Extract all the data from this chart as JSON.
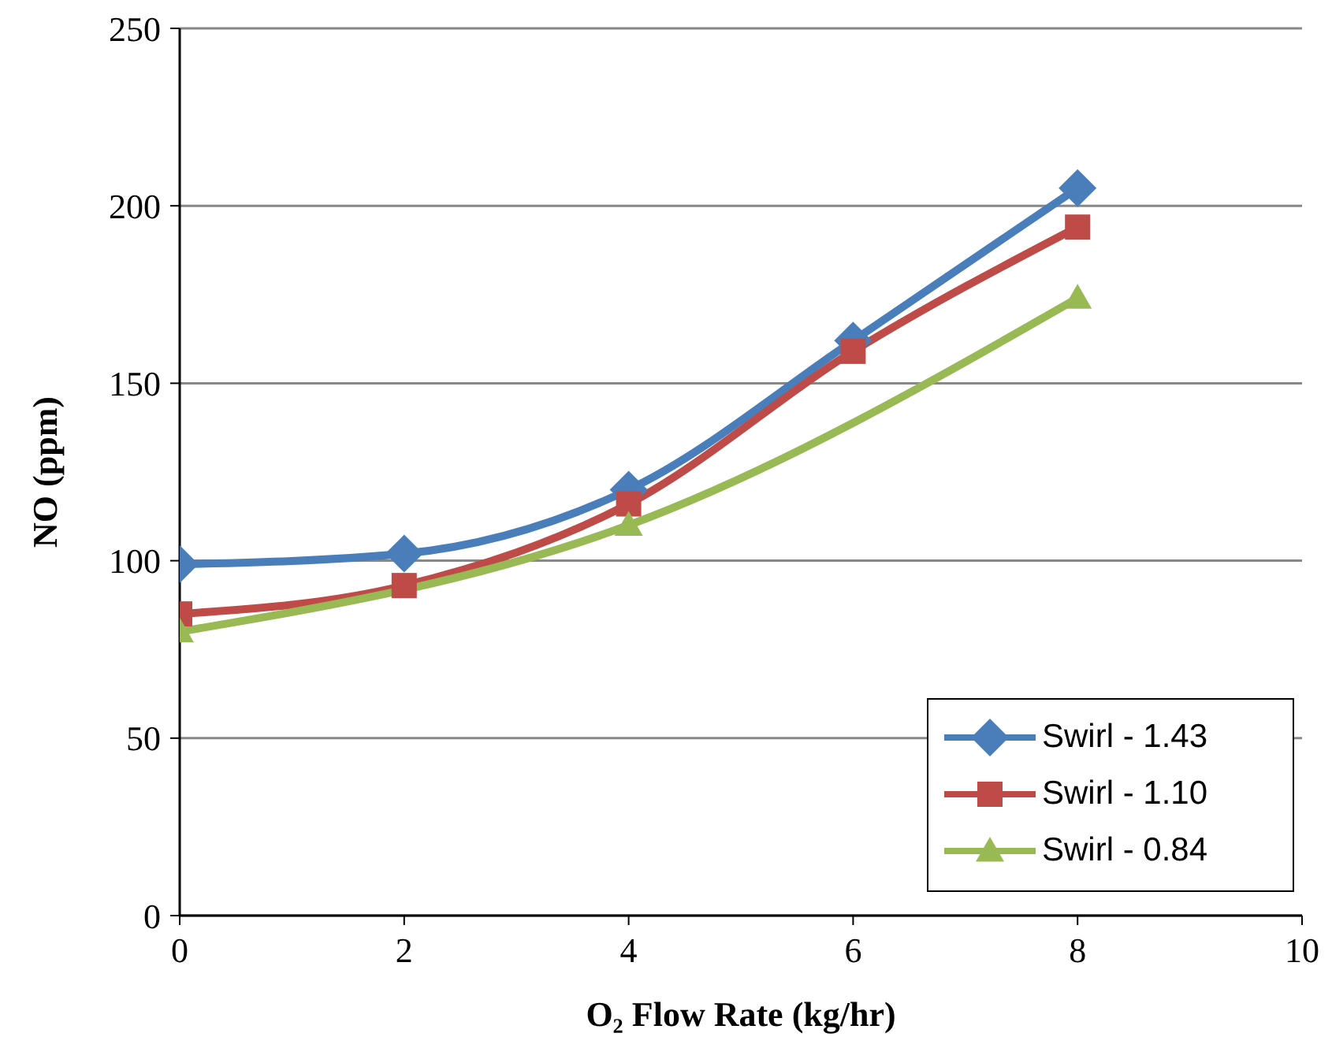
{
  "chart_data": {
    "type": "line",
    "xlabel": "O₂ Flow Rate (kg/hr)",
    "ylabel": "NO (ppm)",
    "x": [
      0,
      2,
      4,
      6,
      8
    ],
    "xlim": [
      0,
      10
    ],
    "xticks": [
      0,
      2,
      4,
      6,
      8,
      10
    ],
    "ylim": [
      0,
      250
    ],
    "yticks": [
      0,
      50,
      100,
      150,
      200,
      250
    ],
    "grid": "y",
    "legend": "bottom right",
    "series": [
      {
        "name": "Swirl - 1.43",
        "color": "#4a7ebb",
        "marker": "diamond",
        "values": [
          99,
          102,
          120,
          162,
          205
        ]
      },
      {
        "name": "Swirl - 1.10",
        "color": "#be4b48",
        "marker": "square",
        "values": [
          85,
          93,
          116,
          159,
          194
        ]
      },
      {
        "name": "Swirl - 0.84",
        "color": "#98b954",
        "marker": "triangle",
        "values": [
          80,
          null,
          110,
          null,
          174
        ]
      }
    ]
  }
}
